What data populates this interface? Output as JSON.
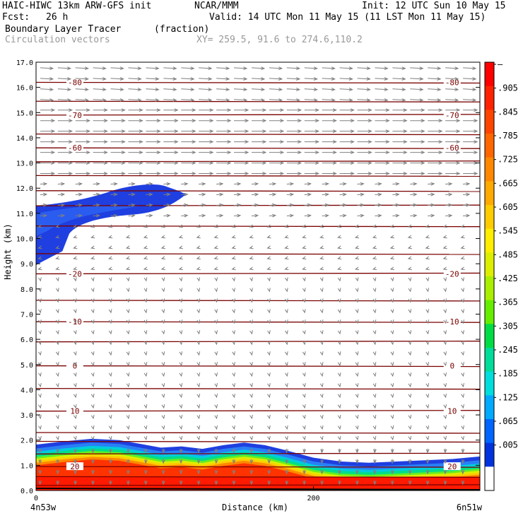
{
  "header": {
    "model": "HAIC-HIWC 13km ARW-GFS init",
    "org": "NCAR/MMM",
    "init": "Init: 12 UTC Sun 10 May 15",
    "fcst_label": "Fcst:",
    "fcst_value": "26 h",
    "valid": "Valid: 14 UTC Mon 11 May 15 (11 LST Mon 11 May 15)",
    "field1_name": "Boundary Layer Tracer",
    "field1_unit": "(fraction)",
    "field2_name": "Circulation vectors",
    "xy": "XY= 259.5, 91.6 to 274.6,110.2"
  },
  "chart_data": {
    "type": "heatmap",
    "ylabel": "Height (km)",
    "xlabel": "Distance (km)",
    "ylim": [
      0,
      17
    ],
    "xlim": [
      0,
      320
    ],
    "y_ticks": [
      "0.0",
      "1.0",
      "2.0",
      "3.0",
      "4.0",
      "5.0",
      "6.0",
      "7.0",
      "8.0",
      "9.0",
      "10.0",
      "11.0",
      "12.0",
      "13.0",
      "14.0",
      "15.0",
      "16.0",
      "17.0"
    ],
    "x_ticks": [
      {
        "value": 0,
        "label": "0"
      },
      {
        "value": 200,
        "label": "200"
      }
    ],
    "x_left_label": "4n53w",
    "x_right_label": "6n51w",
    "colorbar_labels": [
      "–",
      ".905",
      ".845",
      ".785",
      ".725",
      ".665",
      ".605",
      ".545",
      ".485",
      ".425",
      ".365",
      ".305",
      ".245",
      ".185",
      ".125",
      ".065",
      ".005"
    ],
    "colorbar_colors": [
      "#ff0000",
      "#ff2200",
      "#ff4400",
      "#ff6600",
      "#ff8800",
      "#ffaa00",
      "#ffcc00",
      "#ffee00",
      "#ddee00",
      "#aaee00",
      "#66ee00",
      "#00dd44",
      "#00dd99",
      "#00dddd",
      "#00aaff",
      "#0066ff",
      "#0033dd",
      "#ffffff"
    ],
    "isotherms": [
      {
        "label": "-80",
        "height": 16.2
      },
      {
        "label": "-70",
        "height": 14.9
      },
      {
        "label": "-60",
        "height": 13.6
      },
      {
        "label": "-20",
        "height": 8.6
      },
      {
        "label": "-10",
        "height": 6.7
      },
      {
        "label": "0",
        "height": 4.95
      },
      {
        "label": "10",
        "height": 3.15
      },
      {
        "label": "20",
        "height": 0.95
      }
    ]
  }
}
